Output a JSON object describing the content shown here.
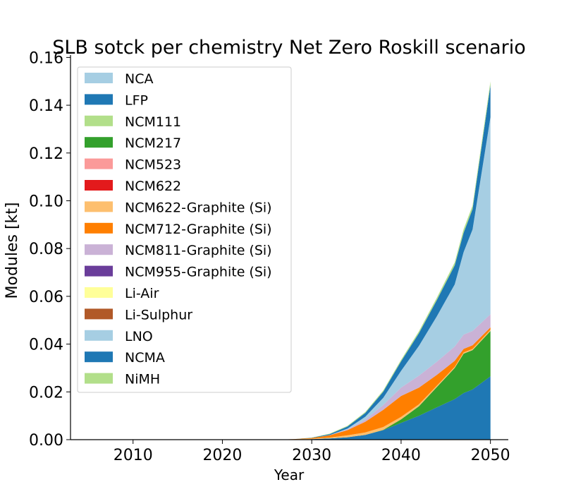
{
  "chart_data": {
    "type": "area",
    "stacked": true,
    "title": "SLB sotck per chemistry Net Zero Roskill scenario",
    "xlabel": "Year",
    "ylabel": "Modules [kt]",
    "xlim": [
      2003,
      2052
    ],
    "ylim": [
      0,
      0.161
    ],
    "xticks": [
      2010,
      2020,
      2030,
      2040,
      2050
    ],
    "xtick_labels": [
      "2010",
      "2020",
      "2030",
      "2040",
      "2050"
    ],
    "yticks": [
      0,
      0.02,
      0.04,
      0.06,
      0.08,
      0.1,
      0.12,
      0.14,
      0.16
    ],
    "ytick_labels": [
      "0.00",
      "0.02",
      "0.04",
      "0.06",
      "0.08",
      "0.10",
      "0.12",
      "0.14",
      "0.16"
    ],
    "grid": false,
    "legend_position": "upper-left",
    "x": [
      2026,
      2028,
      2030,
      2032,
      2034,
      2036,
      2038,
      2040,
      2042,
      2044,
      2046,
      2047,
      2048,
      2050
    ],
    "series": [
      {
        "name": "NCA",
        "color": "#a6cee3",
        "values": [
          0,
          0,
          0,
          0,
          0,
          0,
          0,
          0,
          0,
          0,
          0,
          0,
          0,
          0
        ]
      },
      {
        "name": "LFP",
        "color": "#1f78b4",
        "values": [
          1e-05,
          0.0001,
          0.0002,
          0.0005,
          0.001,
          0.002,
          0.004,
          0.007,
          0.01,
          0.0135,
          0.017,
          0.0195,
          0.021,
          0.0265
        ]
      },
      {
        "name": "NCM111",
        "color": "#b2df8a",
        "values": [
          0,
          0,
          0,
          0,
          0,
          0,
          0,
          0,
          0,
          0,
          0,
          0,
          0,
          0
        ]
      },
      {
        "name": "NCM217",
        "color": "#33a02c",
        "values": [
          0,
          0,
          0,
          0,
          0,
          0,
          0.0001,
          0.0015,
          0.004,
          0.0085,
          0.013,
          0.0165,
          0.0165,
          0.019
        ]
      },
      {
        "name": "NCM523",
        "color": "#fb9a99",
        "values": [
          0,
          0,
          0,
          0,
          0,
          0,
          0,
          0,
          0,
          0,
          0,
          0,
          0,
          0
        ]
      },
      {
        "name": "NCM622",
        "color": "#e31a1c",
        "values": [
          0,
          0,
          0,
          0,
          0,
          0,
          0,
          0,
          0,
          0,
          0,
          0,
          0,
          0
        ]
      },
      {
        "name": "NCM622-Graphite (Si)",
        "color": "#fdbf6f",
        "values": [
          0,
          5e-05,
          0.0002,
          0.0004,
          0.0008,
          0.001,
          0.0012,
          0.001,
          0.0008,
          0.0006,
          0.0005,
          0.0005,
          0.0005,
          0.0005
        ]
      },
      {
        "name": "NCM712-Graphite (Si)",
        "color": "#ff7f00",
        "values": [
          0,
          5e-05,
          0.0003,
          0.0009,
          0.0022,
          0.0045,
          0.0072,
          0.0088,
          0.007,
          0.0045,
          0.0025,
          0.0015,
          0.0015,
          0.001
        ]
      },
      {
        "name": "NCM811-Graphite (Si)",
        "color": "#cab2d6",
        "values": [
          0,
          0,
          0,
          0.0001,
          0.0003,
          0.0009,
          0.002,
          0.0035,
          0.005,
          0.0055,
          0.006,
          0.006,
          0.006,
          0.0055
        ]
      },
      {
        "name": "NCM955-Graphite (Si)",
        "color": "#6a3d9a",
        "values": [
          0,
          0,
          0,
          0,
          0,
          0,
          0,
          0,
          0,
          0,
          0,
          0,
          0,
          0
        ]
      },
      {
        "name": "Li-Air",
        "color": "#ffff99",
        "values": [
          0,
          0,
          0,
          0,
          0,
          0,
          0,
          0,
          0,
          0,
          0,
          0,
          0,
          0
        ]
      },
      {
        "name": "Li-Sulphur",
        "color": "#b15928",
        "values": [
          0,
          0,
          0,
          0,
          0,
          0,
          0,
          0,
          0,
          0,
          0,
          0,
          0,
          0
        ]
      },
      {
        "name": "LNO",
        "color": "#a6cee3",
        "values": [
          0,
          0,
          0,
          0,
          0.0003,
          0.0012,
          0.003,
          0.007,
          0.0125,
          0.019,
          0.026,
          0.0345,
          0.0425,
          0.0825
        ]
      },
      {
        "name": "NCMA",
        "color": "#1f78b4",
        "values": [
          0,
          0,
          0.0001,
          0.0004,
          0.0009,
          0.0016,
          0.0026,
          0.004,
          0.0053,
          0.0068,
          0.008,
          0.0081,
          0.0085,
          0.0134
        ]
      },
      {
        "name": "NiMH",
        "color": "#b2df8a",
        "values": [
          0,
          0,
          0.0001,
          0.0002,
          0.0003,
          0.0004,
          0.0005,
          0.0006,
          0.0008,
          0.001,
          0.0012,
          0.0015,
          0.0015,
          0.0016
        ]
      }
    ]
  }
}
